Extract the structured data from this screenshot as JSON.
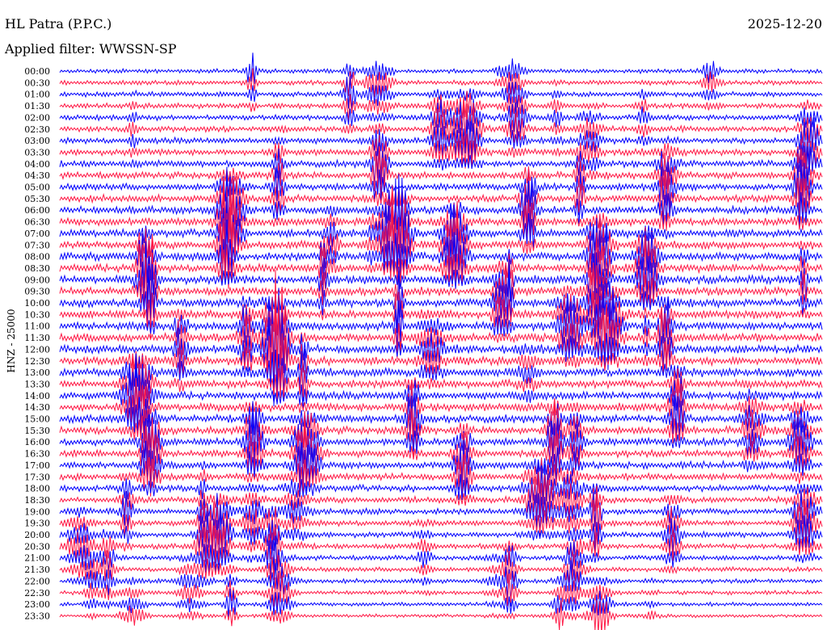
{
  "header": {
    "station": "HL Patra (P.P.C.)",
    "filter": "Applied filter: WWSSN-SP",
    "date": "2025-12-20"
  },
  "chart_data": {
    "type": "line",
    "title": "HL Patra (P.P.C.)",
    "subtitle": "Applied filter: WWSSN-SP",
    "date": "2025-12-20",
    "ylabel": "HNZ - 25000",
    "xlabel": "",
    "ytick_labels": [
      "00:00",
      "00:30",
      "01:00",
      "01:30",
      "02:00",
      "02:30",
      "03:00",
      "03:30",
      "04:00",
      "04:30",
      "05:00",
      "05:30",
      "06:00",
      "06:30",
      "07:00",
      "07:30",
      "08:00",
      "08:30",
      "09:00",
      "09:30",
      "10:00",
      "10:30",
      "11:00",
      "11:30",
      "12:00",
      "12:30",
      "13:00",
      "13:30",
      "14:00",
      "14:30",
      "15:00",
      "15:30",
      "16:00",
      "16:30",
      "17:00",
      "17:30",
      "18:00",
      "18:30",
      "19:00",
      "19:30",
      "20:00",
      "20:30",
      "21:00",
      "21:30",
      "22:00",
      "22:30",
      "23:00",
      "23:30"
    ],
    "series_colors": [
      "#0000ff",
      "#ff1744"
    ],
    "grid": false,
    "legend": "none"
  }
}
